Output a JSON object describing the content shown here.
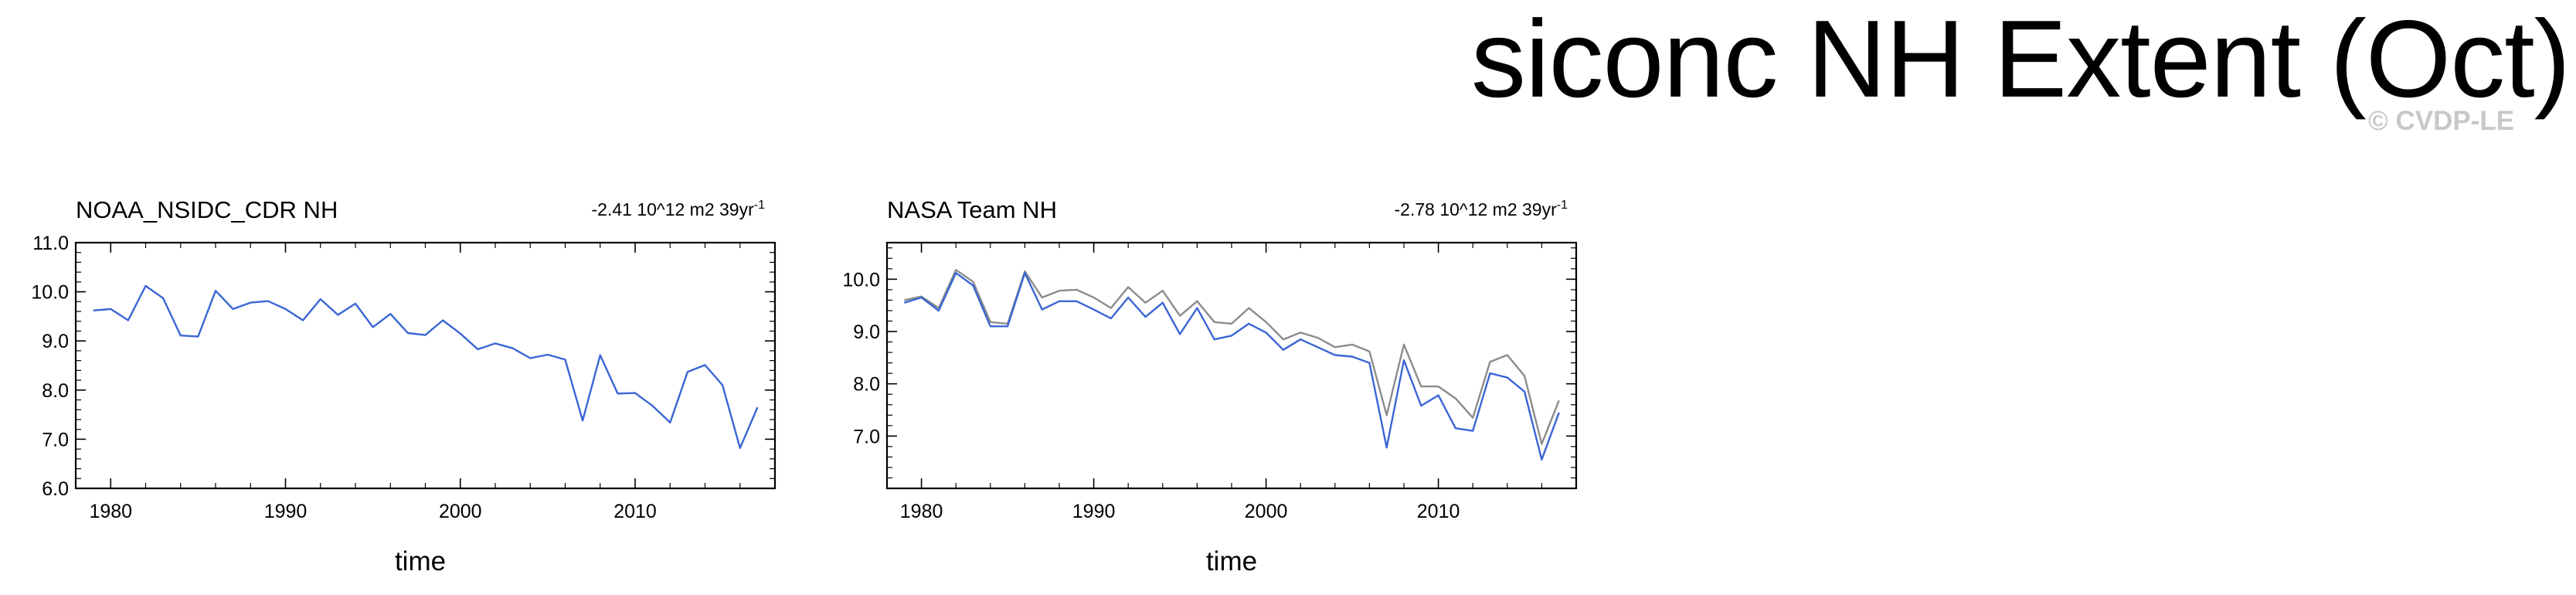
{
  "title": "siconc NH Extent (Oct)",
  "watermark": "© CVDP-LE",
  "colors": {
    "primary_line": "#3a66d4",
    "reference_line": "#8c8c8c",
    "axis": "#000000"
  },
  "chart_data": [
    {
      "type": "line",
      "title": "NOAA_NSIDC_CDR NH",
      "trend_label": "-2.41 10^12 m2 39yr",
      "trend_superscript": "-1",
      "xlabel": "time",
      "ylabel": "",
      "xlim": [
        1978,
        2018
      ],
      "ylim": [
        6.0,
        11.0
      ],
      "xticks": [
        "1980",
        "1990",
        "2000",
        "2010"
      ],
      "yticks": [
        "6.0",
        "7.0",
        "8.0",
        "9.0",
        "10.0",
        "11.0"
      ],
      "x": [
        1979,
        1980,
        1981,
        1982,
        1983,
        1984,
        1985,
        1986,
        1987,
        1988,
        1989,
        1990,
        1991,
        1992,
        1993,
        1994,
        1995,
        1996,
        1997,
        1998,
        1999,
        2000,
        2001,
        2002,
        2003,
        2004,
        2005,
        2006,
        2007,
        2008,
        2009,
        2010,
        2011,
        2012,
        2013,
        2014,
        2015,
        2016,
        2017
      ],
      "series": [
        {
          "values": [
            9.62,
            9.65,
            9.42,
            10.12,
            9.87,
            9.11,
            9.09,
            10.02,
            9.65,
            9.78,
            9.81,
            9.65,
            9.42,
            9.85,
            9.53,
            9.76,
            9.28,
            9.55,
            9.16,
            9.12,
            9.42,
            9.15,
            8.83,
            8.95,
            8.85,
            8.65,
            8.72,
            8.62,
            7.38,
            8.71,
            7.93,
            7.94,
            7.68,
            7.34,
            8.37,
            8.51,
            8.1,
            6.82,
            7.65
          ],
          "color": "#3a66d4"
        }
      ]
    },
    {
      "type": "line",
      "title": "NASA Team NH",
      "trend_label": "-2.78 10^12 m2 39yr",
      "trend_superscript": "-1",
      "xlabel": "time",
      "ylabel": "",
      "xlim": [
        1978,
        2018
      ],
      "ylim": [
        6.0,
        10.7
      ],
      "xticks": [
        "1980",
        "1990",
        "2000",
        "2010"
      ],
      "yticks": [
        "7.0",
        "8.0",
        "9.0",
        "10.0"
      ],
      "x": [
        1979,
        1980,
        1981,
        1982,
        1983,
        1984,
        1985,
        1986,
        1987,
        1988,
        1989,
        1990,
        1991,
        1992,
        1993,
        1994,
        1995,
        1996,
        1997,
        1998,
        1999,
        2000,
        2001,
        2002,
        2003,
        2004,
        2005,
        2006,
        2007,
        2008,
        2009,
        2010,
        2011,
        2012,
        2013,
        2014,
        2015,
        2016,
        2017
      ],
      "series": [
        {
          "values": [
            9.6,
            9.67,
            9.45,
            10.18,
            9.95,
            9.18,
            9.15,
            10.15,
            9.65,
            9.78,
            9.8,
            9.65,
            9.45,
            9.85,
            9.55,
            9.78,
            9.3,
            9.58,
            9.18,
            9.15,
            9.45,
            9.18,
            8.85,
            8.98,
            8.88,
            8.7,
            8.75,
            8.62,
            7.4,
            8.75,
            7.95,
            7.95,
            7.72,
            7.35,
            8.42,
            8.55,
            8.15,
            6.85,
            7.68
          ],
          "color": "#8c8c8c"
        },
        {
          "values": [
            9.55,
            9.65,
            9.4,
            10.12,
            9.88,
            9.1,
            9.1,
            10.12,
            9.42,
            9.58,
            9.58,
            9.42,
            9.25,
            9.65,
            9.28,
            9.55,
            8.95,
            9.45,
            8.85,
            8.92,
            9.15,
            8.98,
            8.65,
            8.85,
            8.7,
            8.55,
            8.52,
            8.4,
            6.78,
            8.45,
            7.58,
            7.78,
            7.15,
            7.1,
            8.2,
            8.12,
            7.85,
            6.55,
            7.45
          ],
          "color": "#3a66d4"
        }
      ]
    }
  ]
}
